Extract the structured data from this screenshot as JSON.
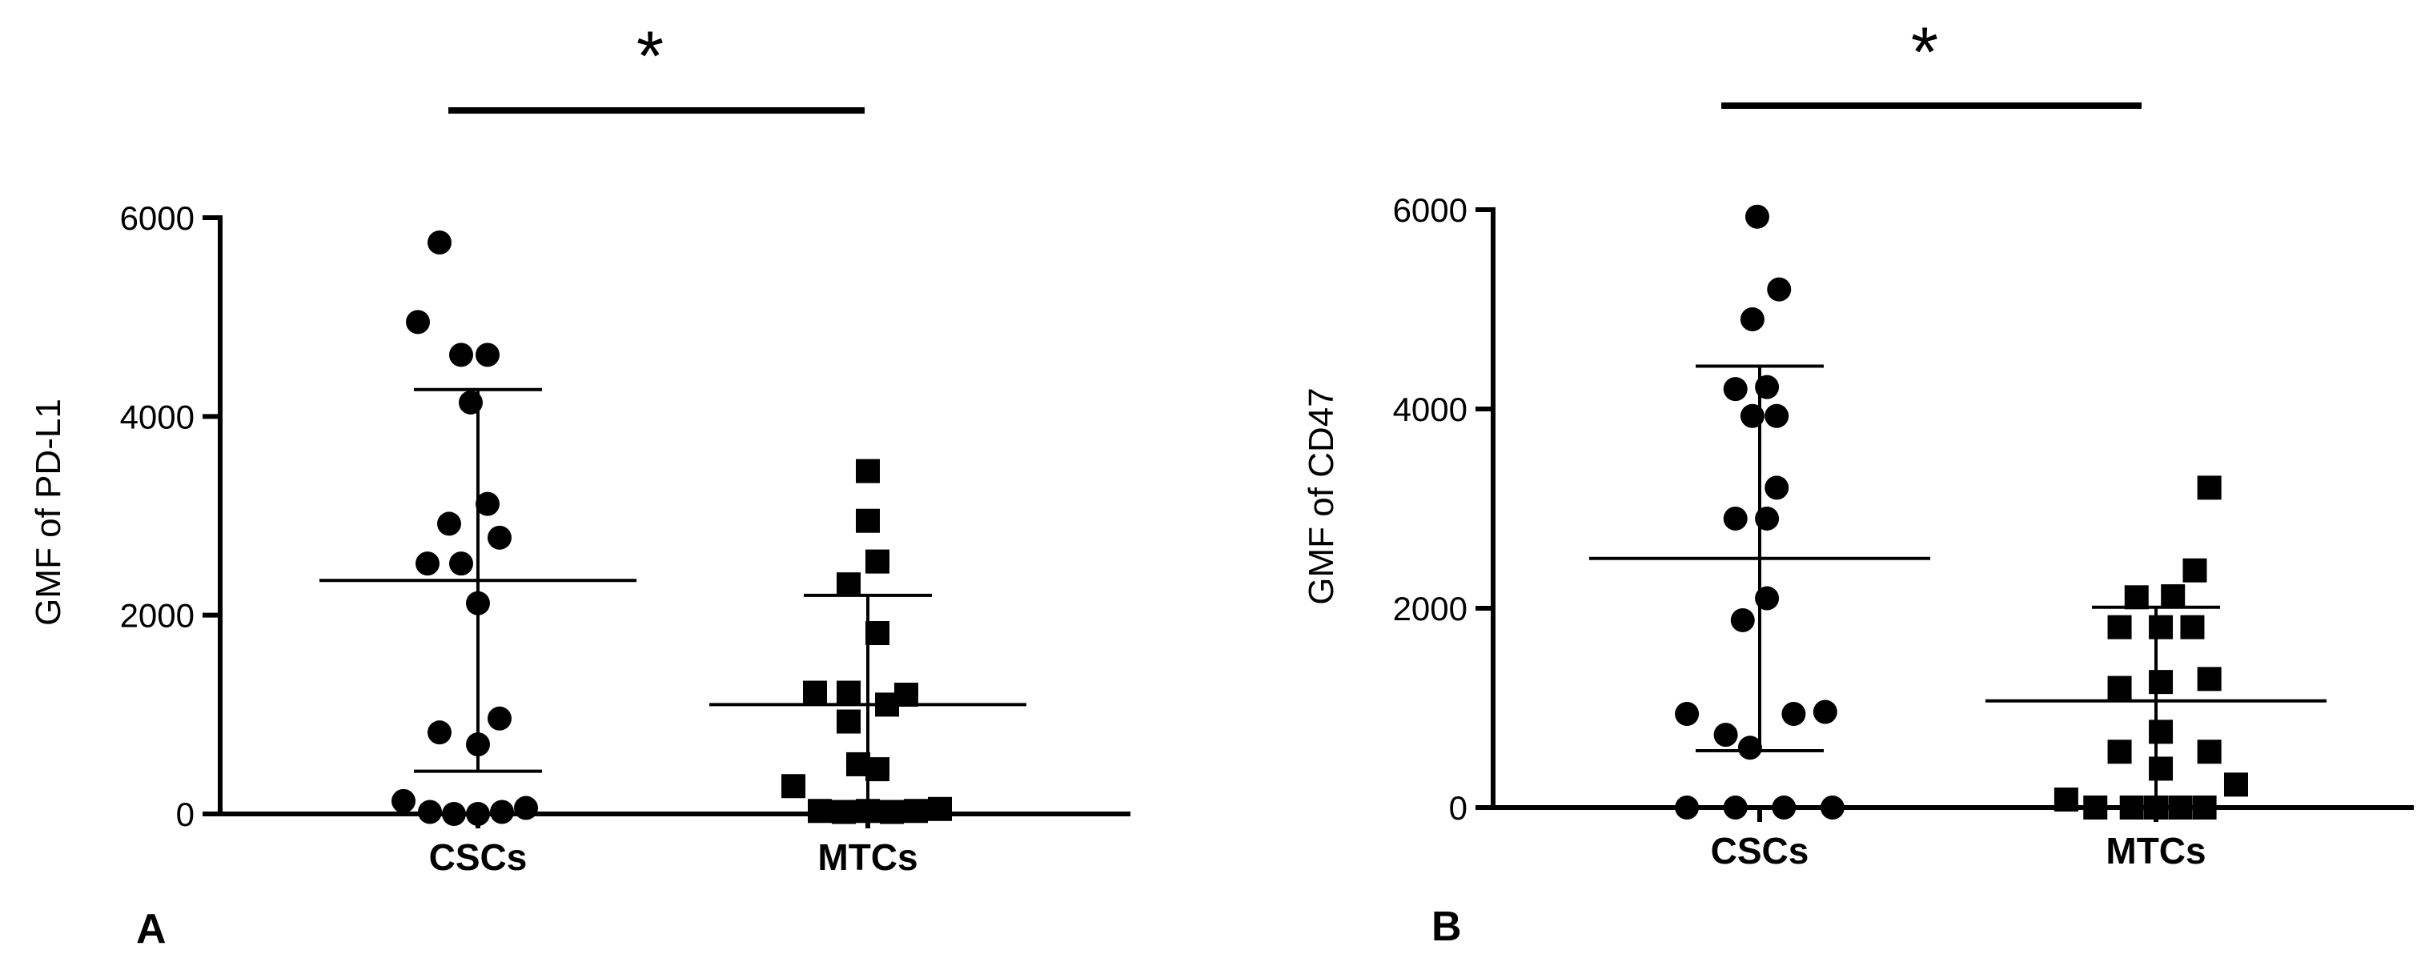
{
  "chart_data": [
    {
      "type": "scatter",
      "panel_label": "A",
      "ylabel": "GMF of PD-L1",
      "ylim": [
        0,
        6000
      ],
      "yticks": [
        0,
        2000,
        4000,
        6000
      ],
      "categories": [
        "CSCs",
        "MTCs"
      ],
      "significance": "*",
      "series": [
        {
          "category": "CSCs",
          "marker": "circle",
          "mean": 2350,
          "sd_upper": 4270,
          "sd_lower": 430,
          "points": [
            {
              "x": -0.16,
              "y": 5750
            },
            {
              "x": -0.25,
              "y": 4950
            },
            {
              "x": -0.07,
              "y": 4620
            },
            {
              "x": 0.04,
              "y": 4620
            },
            {
              "x": -0.03,
              "y": 4140
            },
            {
              "x": -0.12,
              "y": 2920
            },
            {
              "x": 0.04,
              "y": 3120
            },
            {
              "x": 0.09,
              "y": 2780
            },
            {
              "x": -0.21,
              "y": 2520
            },
            {
              "x": -0.07,
              "y": 2520
            },
            {
              "x": 0.0,
              "y": 2120
            },
            {
              "x": -0.16,
              "y": 820
            },
            {
              "x": 0.09,
              "y": 960
            },
            {
              "x": 0.0,
              "y": 700
            },
            {
              "x": -0.31,
              "y": 130
            },
            {
              "x": -0.2,
              "y": 20
            },
            {
              "x": -0.1,
              "y": 0
            },
            {
              "x": 0.0,
              "y": 0
            },
            {
              "x": 0.1,
              "y": 20
            },
            {
              "x": 0.2,
              "y": 60
            }
          ]
        },
        {
          "category": "MTCs",
          "marker": "square",
          "mean": 1100,
          "sd_upper": 2200,
          "sd_lower": 0,
          "points": [
            {
              "x": 0.0,
              "y": 3450
            },
            {
              "x": 0.0,
              "y": 2950
            },
            {
              "x": 0.04,
              "y": 2540
            },
            {
              "x": -0.08,
              "y": 2310
            },
            {
              "x": 0.04,
              "y": 1820
            },
            {
              "x": -0.22,
              "y": 1220
            },
            {
              "x": -0.08,
              "y": 1220
            },
            {
              "x": 0.08,
              "y": 1100
            },
            {
              "x": 0.16,
              "y": 1200
            },
            {
              "x": -0.08,
              "y": 930
            },
            {
              "x": -0.04,
              "y": 500
            },
            {
              "x": 0.04,
              "y": 450
            },
            {
              "x": -0.31,
              "y": 280
            },
            {
              "x": -0.2,
              "y": 30
            },
            {
              "x": -0.1,
              "y": 20
            },
            {
              "x": 0.0,
              "y": 30
            },
            {
              "x": 0.1,
              "y": 20
            },
            {
              "x": 0.2,
              "y": 30
            },
            {
              "x": 0.3,
              "y": 50
            }
          ]
        }
      ]
    },
    {
      "type": "scatter",
      "panel_label": "B",
      "ylabel": "GMF of CD47",
      "ylim": [
        0,
        6000
      ],
      "yticks": [
        0,
        2000,
        4000,
        6000
      ],
      "categories": [
        "CSCs",
        "MTCs"
      ],
      "significance": "*",
      "series": [
        {
          "category": "CSCs",
          "marker": "circle",
          "mean": 2500,
          "sd_upper": 4430,
          "sd_lower": 570,
          "points": [
            {
              "x": -0.01,
              "y": 5930
            },
            {
              "x": 0.08,
              "y": 5200
            },
            {
              "x": -0.03,
              "y": 4900
            },
            {
              "x": -0.1,
              "y": 4200
            },
            {
              "x": 0.03,
              "y": 4220
            },
            {
              "x": -0.03,
              "y": 3930
            },
            {
              "x": 0.07,
              "y": 3930
            },
            {
              "x": 0.07,
              "y": 3210
            },
            {
              "x": -0.1,
              "y": 2900
            },
            {
              "x": 0.03,
              "y": 2900
            },
            {
              "x": 0.03,
              "y": 2100
            },
            {
              "x": -0.07,
              "y": 1880
            },
            {
              "x": -0.3,
              "y": 940
            },
            {
              "x": 0.14,
              "y": 940
            },
            {
              "x": 0.27,
              "y": 960
            },
            {
              "x": -0.14,
              "y": 730
            },
            {
              "x": -0.04,
              "y": 600
            },
            {
              "x": -0.3,
              "y": 0
            },
            {
              "x": -0.1,
              "y": 0
            },
            {
              "x": 0.1,
              "y": 0
            },
            {
              "x": 0.3,
              "y": 0
            }
          ]
        },
        {
          "category": "MTCs",
          "marker": "square",
          "mean": 1070,
          "sd_upper": 2010,
          "sd_lower": 0,
          "points": [
            {
              "x": 0.22,
              "y": 3210
            },
            {
              "x": 0.16,
              "y": 2380
            },
            {
              "x": -0.08,
              "y": 2110
            },
            {
              "x": 0.07,
              "y": 2120
            },
            {
              "x": -0.15,
              "y": 1810
            },
            {
              "x": 0.02,
              "y": 1810
            },
            {
              "x": 0.15,
              "y": 1810
            },
            {
              "x": -0.15,
              "y": 1200
            },
            {
              "x": 0.02,
              "y": 1260
            },
            {
              "x": 0.22,
              "y": 1290
            },
            {
              "x": 0.02,
              "y": 760
            },
            {
              "x": -0.15,
              "y": 560
            },
            {
              "x": 0.22,
              "y": 560
            },
            {
              "x": 0.02,
              "y": 390
            },
            {
              "x": 0.33,
              "y": 230
            },
            {
              "x": -0.37,
              "y": 80
            },
            {
              "x": -0.25,
              "y": 0
            },
            {
              "x": -0.1,
              "y": 0
            },
            {
              "x": 0.0,
              "y": 0
            },
            {
              "x": 0.1,
              "y": 0
            },
            {
              "x": 0.2,
              "y": 0
            }
          ]
        }
      ]
    }
  ]
}
